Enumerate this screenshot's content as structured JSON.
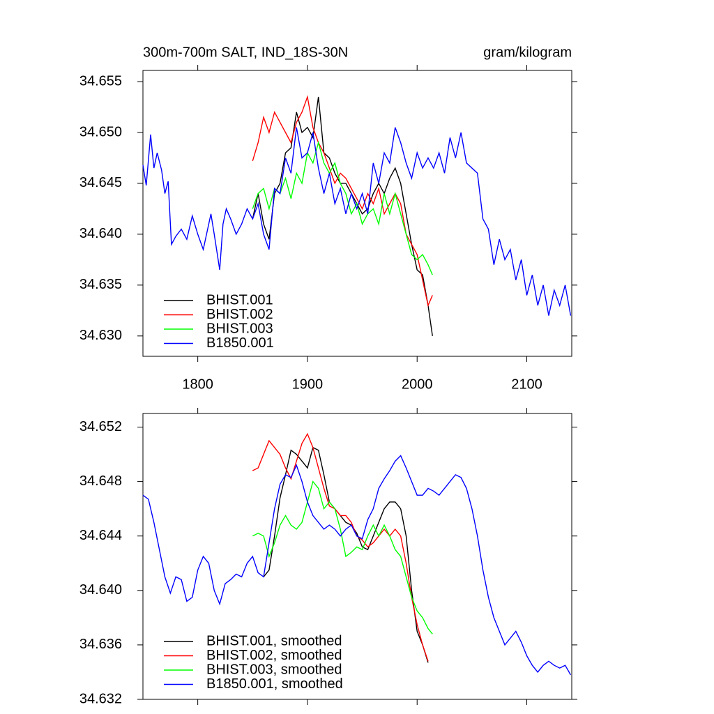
{
  "chart_data": [
    {
      "type": "line",
      "title": "300m-700m SALT, IND_18S-30N",
      "units_label": "gram/kilogram",
      "xlim": [
        1750,
        2141
      ],
      "xticks": [
        1800,
        1900,
        2000,
        2100
      ],
      "ylim": [
        34.628,
        34.6561
      ],
      "yticks": [
        {
          "value": 34.63,
          "label": "34.630"
        },
        34.635,
        {
          "value": 34.64,
          "label": "34.640"
        },
        34.645,
        {
          "value": 34.65,
          "label": "34.650"
        },
        34.655
      ],
      "legend": "lower left",
      "series": [
        {
          "name": "BHIST.001",
          "color": "#000000",
          "x": [
            1850,
            1855,
            1860,
            1865,
            1870,
            1875,
            1880,
            1885,
            1890,
            1895,
            1900,
            1905,
            1910,
            1915,
            1920,
            1925,
            1930,
            1935,
            1940,
            1945,
            1950,
            1955,
            1960,
            1965,
            1970,
            1975,
            1980,
            1985,
            1990,
            1995,
            2000,
            2005,
            2010,
            2014
          ],
          "values": [
            34.6415,
            34.644,
            34.641,
            34.6395,
            34.644,
            34.645,
            34.648,
            34.6485,
            34.652,
            34.65,
            34.6505,
            34.6495,
            34.6535,
            34.648,
            34.6475,
            34.646,
            34.645,
            34.645,
            34.644,
            34.643,
            34.642,
            34.6425,
            34.644,
            34.645,
            34.644,
            34.6455,
            34.6465,
            34.645,
            34.642,
            34.639,
            34.6365,
            34.636,
            34.633,
            34.63
          ]
        },
        {
          "name": "BHIST.002",
          "color": "#ff0000",
          "x": [
            1850,
            1855,
            1860,
            1865,
            1870,
            1875,
            1880,
            1885,
            1890,
            1895,
            1900,
            1905,
            1910,
            1915,
            1920,
            1925,
            1930,
            1935,
            1940,
            1945,
            1950,
            1955,
            1960,
            1965,
            1970,
            1975,
            1980,
            1985,
            1990,
            1995,
            2000,
            2005,
            2010,
            2014
          ],
          "values": [
            34.6472,
            34.649,
            34.6515,
            34.65,
            34.652,
            34.651,
            34.65,
            34.649,
            34.651,
            34.652,
            34.6535,
            34.6505,
            34.649,
            34.648,
            34.6465,
            34.645,
            34.646,
            34.6455,
            34.6445,
            34.6435,
            34.6425,
            34.644,
            34.643,
            34.6445,
            34.642,
            34.643,
            34.644,
            34.643,
            34.64,
            34.639,
            34.638,
            34.6355,
            34.633,
            34.634
          ]
        },
        {
          "name": "BHIST.003",
          "color": "#00ff00",
          "x": [
            1850,
            1855,
            1860,
            1865,
            1870,
            1875,
            1880,
            1885,
            1890,
            1895,
            1900,
            1905,
            1910,
            1915,
            1920,
            1925,
            1930,
            1935,
            1940,
            1945,
            1950,
            1955,
            1960,
            1965,
            1970,
            1975,
            1980,
            1985,
            1990,
            1995,
            2000,
            2005,
            2010,
            2014
          ],
          "values": [
            34.6425,
            34.644,
            34.6445,
            34.6425,
            34.6445,
            34.644,
            34.6455,
            34.6435,
            34.646,
            34.645,
            34.648,
            34.647,
            34.649,
            34.647,
            34.646,
            34.647,
            34.645,
            34.644,
            34.642,
            34.643,
            34.641,
            34.642,
            34.6425,
            34.641,
            34.644,
            34.642,
            34.644,
            34.642,
            34.64,
            34.638,
            34.6375,
            34.638,
            34.637,
            34.636
          ]
        },
        {
          "name": "B1850.001",
          "color": "#0000ff",
          "x": [
            1750,
            1753,
            1757,
            1760,
            1763,
            1767,
            1770,
            1773,
            1776,
            1780,
            1785,
            1790,
            1795,
            1800,
            1805,
            1808,
            1812,
            1815,
            1820,
            1823,
            1826,
            1830,
            1835,
            1840,
            1845,
            1850,
            1855,
            1860,
            1865,
            1870,
            1875,
            1880,
            1885,
            1890,
            1895,
            1900,
            1905,
            1910,
            1915,
            1920,
            1925,
            1930,
            1935,
            1940,
            1945,
            1950,
            1955,
            1960,
            1965,
            1970,
            1975,
            1980,
            1985,
            1990,
            1995,
            2000,
            2005,
            2010,
            2015,
            2020,
            2025,
            2030,
            2035,
            2040,
            2045,
            2050,
            2055,
            2060,
            2065,
            2070,
            2075,
            2080,
            2085,
            2090,
            2095,
            2100,
            2105,
            2110,
            2115,
            2120,
            2125,
            2130,
            2135,
            2140
          ],
          "values": [
            34.6468,
            34.6448,
            34.6498,
            34.6465,
            34.648,
            34.6463,
            34.644,
            34.6452,
            34.639,
            34.6398,
            34.6405,
            34.6395,
            34.6418,
            34.64,
            34.6385,
            34.64,
            34.642,
            34.64,
            34.6365,
            34.641,
            34.6425,
            34.6415,
            34.64,
            34.641,
            34.6425,
            34.6415,
            34.643,
            34.64,
            34.6385,
            34.6445,
            34.644,
            34.6475,
            34.646,
            34.6505,
            34.6475,
            34.648,
            34.65,
            34.6465,
            34.644,
            34.646,
            34.643,
            34.6445,
            34.642,
            34.644,
            34.6425,
            34.644,
            34.642,
            34.647,
            34.645,
            34.648,
            34.647,
            34.6505,
            34.649,
            34.647,
            34.6455,
            34.648,
            34.6465,
            34.6475,
            34.6465,
            34.648,
            34.646,
            34.6495,
            34.6475,
            34.65,
            34.647,
            34.6465,
            34.646,
            34.6415,
            34.6405,
            34.637,
            34.6395,
            34.6375,
            34.6385,
            34.6355,
            34.6375,
            34.634,
            34.636,
            34.633,
            34.635,
            34.632,
            34.6345,
            34.633,
            34.635,
            34.632
          ]
        }
      ]
    },
    {
      "type": "line",
      "xlim": [
        1750,
        2141
      ],
      "xticks": [
        1800,
        1900,
        2000,
        2100
      ],
      "ylim": [
        34.632,
        34.653
      ],
      "yticks": [
        34.632,
        34.636,
        {
          "value": 34.64,
          "label": "34.640"
        },
        34.644,
        34.648,
        34.652
      ],
      "legend": "lower left",
      "series": [
        {
          "name": "BHIST.001, smoothed",
          "color": "#000000",
          "x": [
            1860,
            1865,
            1870,
            1875,
            1880,
            1885,
            1890,
            1895,
            1900,
            1905,
            1910,
            1915,
            1920,
            1925,
            1930,
            1935,
            1940,
            1945,
            1950,
            1955,
            1960,
            1965,
            1970,
            1975,
            1980,
            1985,
            1990,
            1995,
            2000,
            2005,
            2010
          ],
          "values": [
            34.641,
            34.6415,
            34.644,
            34.6468,
            34.6485,
            34.6503,
            34.65,
            34.6495,
            34.649,
            34.6505,
            34.6503,
            34.6485,
            34.6465,
            34.646,
            34.6455,
            34.645,
            34.6448,
            34.6442,
            34.6432,
            34.643,
            34.644,
            34.645,
            34.646,
            34.6465,
            34.6465,
            34.646,
            34.644,
            34.64,
            34.637,
            34.636,
            34.6347
          ]
        },
        {
          "name": "BHIST.002, smoothed",
          "color": "#ff0000",
          "x": [
            1850,
            1855,
            1860,
            1865,
            1870,
            1875,
            1880,
            1885,
            1890,
            1895,
            1900,
            1905,
            1910,
            1915,
            1920,
            1925,
            1930,
            1935,
            1940,
            1945,
            1950,
            1955,
            1960,
            1965,
            1970,
            1975,
            1980,
            1985,
            1990,
            1995,
            2000,
            2005,
            2010
          ],
          "values": [
            34.6488,
            34.649,
            34.65,
            34.651,
            34.6505,
            34.65,
            34.649,
            34.6482,
            34.6495,
            34.6508,
            34.6515,
            34.6505,
            34.649,
            34.6475,
            34.6462,
            34.646,
            34.6455,
            34.6455,
            34.645,
            34.644,
            34.6437,
            34.6432,
            34.6435,
            34.644,
            34.6445,
            34.644,
            34.6445,
            34.644,
            34.642,
            34.6395,
            34.6375,
            34.636,
            34.6348
          ]
        },
        {
          "name": "BHIST.003, smoothed",
          "color": "#00ff00",
          "x": [
            1850,
            1855,
            1860,
            1865,
            1870,
            1875,
            1880,
            1885,
            1890,
            1895,
            1900,
            1905,
            1910,
            1915,
            1920,
            1925,
            1930,
            1935,
            1940,
            1945,
            1950,
            1955,
            1960,
            1965,
            1970,
            1975,
            1980,
            1985,
            1990,
            1995,
            2000,
            2005,
            2010,
            2014
          ],
          "values": [
            34.644,
            34.6442,
            34.644,
            34.6425,
            34.6435,
            34.6448,
            34.6455,
            34.6448,
            34.6445,
            34.645,
            34.6465,
            34.648,
            34.6475,
            34.646,
            34.6465,
            34.646,
            34.6445,
            34.6425,
            34.6428,
            34.6432,
            34.643,
            34.644,
            34.6448,
            34.644,
            34.6448,
            34.644,
            34.643,
            34.6425,
            34.641,
            34.6395,
            34.6385,
            34.638,
            34.6372,
            34.6368
          ]
        },
        {
          "name": "B1850.001, smoothed",
          "color": "#0000ff",
          "x": [
            1750,
            1755,
            1760,
            1765,
            1770,
            1775,
            1780,
            1785,
            1790,
            1795,
            1800,
            1805,
            1810,
            1815,
            1820,
            1825,
            1830,
            1835,
            1840,
            1845,
            1850,
            1855,
            1860,
            1865,
            1870,
            1875,
            1880,
            1885,
            1890,
            1895,
            1900,
            1905,
            1910,
            1915,
            1920,
            1925,
            1930,
            1935,
            1940,
            1945,
            1950,
            1955,
            1960,
            1965,
            1970,
            1975,
            1980,
            1985,
            1990,
            1995,
            2000,
            2005,
            2010,
            2015,
            2020,
            2025,
            2030,
            2035,
            2040,
            2045,
            2050,
            2055,
            2060,
            2065,
            2070,
            2075,
            2080,
            2085,
            2090,
            2095,
            2100,
            2105,
            2110,
            2115,
            2120,
            2125,
            2130,
            2135,
            2140
          ],
          "values": [
            34.647,
            34.6467,
            34.645,
            34.643,
            34.641,
            34.6398,
            34.641,
            34.6408,
            34.6392,
            34.6395,
            34.6415,
            34.6425,
            34.642,
            34.64,
            34.639,
            34.6405,
            34.6408,
            34.6412,
            34.641,
            34.642,
            34.6425,
            34.6413,
            34.641,
            34.6435,
            34.646,
            34.6478,
            34.6485,
            34.6483,
            34.6492,
            34.648,
            34.6465,
            34.6455,
            34.645,
            34.6445,
            34.6448,
            34.6445,
            34.644,
            34.6445,
            34.6448,
            34.644,
            34.6438,
            34.6452,
            34.646,
            34.6475,
            34.6482,
            34.6488,
            34.6495,
            34.6499,
            34.649,
            34.648,
            34.647,
            34.647,
            34.6475,
            34.6473,
            34.647,
            34.6475,
            34.648,
            34.6485,
            34.6483,
            34.6475,
            34.646,
            34.644,
            34.6415,
            34.6395,
            34.638,
            34.637,
            34.636,
            34.6365,
            34.637,
            34.6362,
            34.6352,
            34.6345,
            34.634,
            34.6345,
            34.6348,
            34.6345,
            34.6343,
            34.6345,
            34.6338
          ]
        }
      ]
    }
  ]
}
